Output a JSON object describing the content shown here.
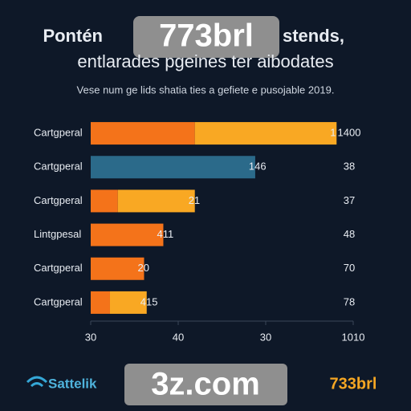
{
  "chart_data": {
    "type": "bar",
    "orientation": "horizontal",
    "stacked": true,
    "title_left": "Pontén",
    "title_badge": "773brl",
    "title_right": "stends,",
    "title_line2": "entlarades pgeines ter aibodates",
    "subtitle": "Vese num ge lids shatia ties a gefiete e pusojable 2019.",
    "categories": [
      "Cartgperal",
      "Cartgperal",
      "Cartgperal",
      "Lintgpesal",
      "Cartgperal",
      "Cartgperal"
    ],
    "series": [
      {
        "color": "#f4731a",
        "values": [
          119,
          null,
          31,
          83,
          61,
          22
        ]
      },
      {
        "color": "#f9a823",
        "values": [
          162,
          null,
          88,
          null,
          null,
          42
        ]
      },
      {
        "color": "#2b6a8a",
        "values": [
          null,
          188,
          null,
          null,
          null,
          null
        ]
      }
    ],
    "bar_labels": [
      "1",
      "146",
      "21",
      "411",
      "20",
      "415"
    ],
    "right_labels": [
      "1400",
      "38",
      "37",
      "48",
      "70",
      "78"
    ],
    "xlim": [
      0,
      300
    ],
    "xticks": [
      {
        "value": 0,
        "label": "30"
      },
      {
        "value": 100,
        "label": "40"
      },
      {
        "value": 200,
        "label": "30"
      },
      {
        "value": 300,
        "label": "1010"
      }
    ],
    "footer_logo": "Sattelik",
    "footer_badge": "3z.com",
    "footer_right": "733brl"
  }
}
